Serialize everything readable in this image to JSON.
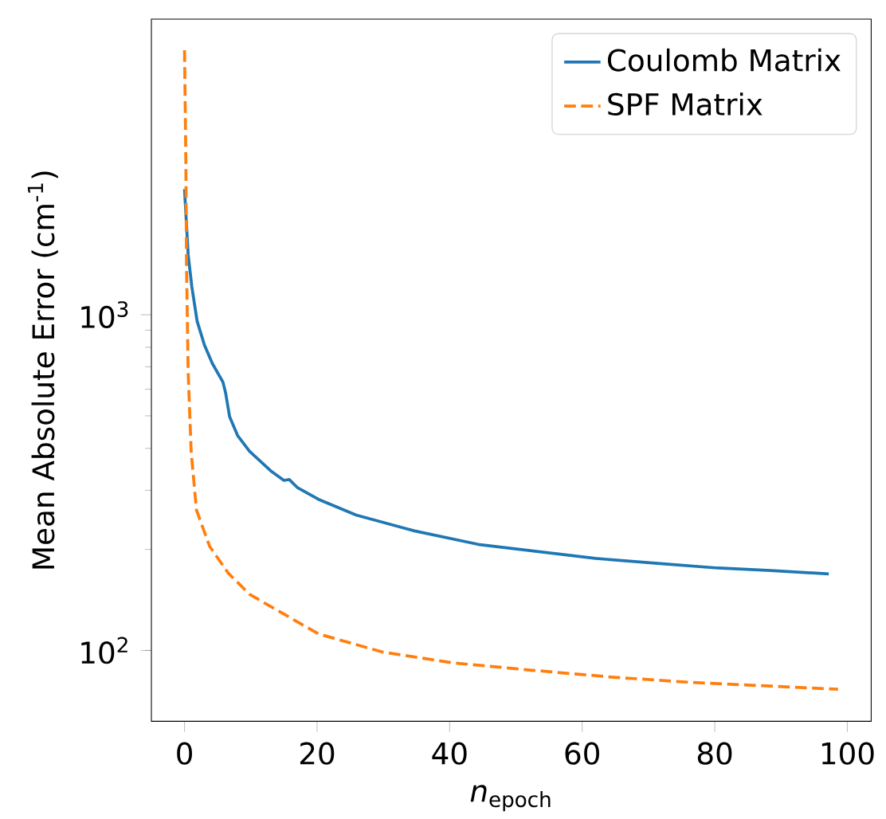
{
  "chart_data": {
    "type": "line",
    "xlabel": "*n*$_{epoch}$",
    "ylabel": "Mean Absolute Error (cm$^{-1}$)",
    "log": "y",
    "legend": "top right",
    "grid": false,
    "marker": "none",
    "xlim": [
      -5,
      103.6
    ],
    "xticks": [
      0,
      20,
      40,
      60,
      80,
      100
    ],
    "ylim": [
      61.5,
      7600
    ],
    "yticks": [
      {
        "value": 100,
        "label": "10$^{2}$"
      },
      {
        "value": 1000,
        "label": "10$^{3}$"
      }
    ],
    "series": [
      {
        "name": "Coulomb Matrix",
        "color": "#1f77b4",
        "line_style": "solid",
        "x": [
          0,
          0.55,
          1.1,
          1.9,
          3.0,
          4.2,
          5.8,
          6.2,
          6.8,
          8.0,
          9.8,
          13.0,
          15.0,
          15.8,
          17.0,
          20.2,
          25.9,
          34.7,
          44.3,
          52.4,
          62.0,
          72.5,
          80.5,
          88.5,
          97.2
        ],
        "values": [
          2366,
          1510,
          1213,
          957,
          813,
          716,
          630,
          585,
          497,
          437,
          392,
          343,
          321,
          323,
          306,
          282,
          253,
          227,
          207,
          198,
          188,
          181,
          176,
          173,
          169
        ]
      },
      {
        "name": "SPF Matrix",
        "color": "#ff7f0e",
        "line_style": "dashed",
        "x": [
          0,
          0.2,
          0.3,
          0.55,
          1.0,
          1.8,
          3.8,
          6.6,
          9.8,
          20.2,
          29.9,
          40.3,
          52.4,
          64.4,
          76.5,
          88.5,
          98.6
        ],
        "values": [
          6140,
          2910,
          1403,
          677,
          392,
          262,
          204,
          170,
          147,
          112,
          98.9,
          91.9,
          87.3,
          83.3,
          80.3,
          78.3,
          76.6
        ]
      }
    ]
  }
}
